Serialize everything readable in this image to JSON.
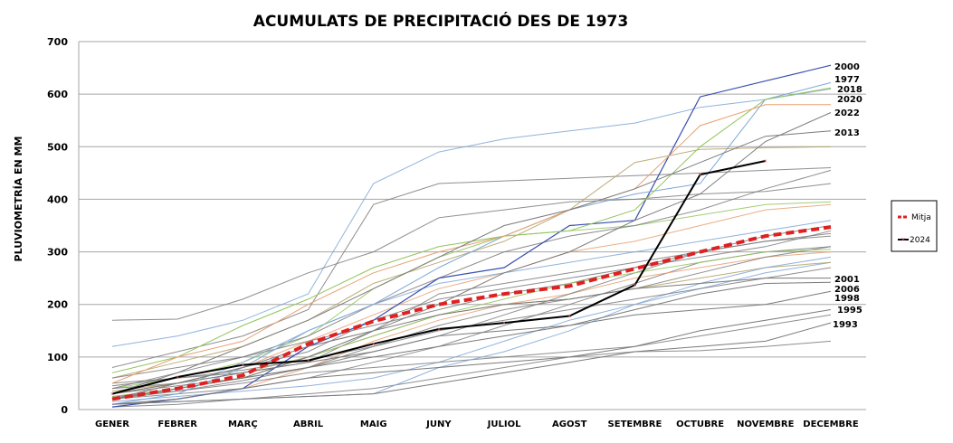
{
  "chart_data": {
    "type": "line",
    "title": "ACUMULATS DE PRECIPITACIÓ DES DE 1973",
    "ylabel": "PLUVIOMETRÍA EN MM",
    "xlabel": "",
    "ylim": [
      0,
      700
    ],
    "yticks": [
      0,
      100,
      200,
      300,
      400,
      500,
      600,
      700
    ],
    "categories": [
      "GENER",
      "FEBRER",
      "MARÇ",
      "ABRIL",
      "MAIG",
      "JUNY",
      "JULIOL",
      "AGOST",
      "SETEMBRE",
      "OCTUBRE",
      "NOVEMBRE",
      "DECEMBRE"
    ],
    "grid": true,
    "legend_position": "right",
    "highlight_series": [
      {
        "name": "Mitja",
        "color": "#e02020",
        "style": "dashed",
        "values": [
          20,
          40,
          65,
          125,
          168,
          200,
          220,
          235,
          268,
          300,
          330,
          347
        ]
      },
      {
        "name": "2024",
        "color": "#000000",
        "style": "solid-markers",
        "values": [
          30,
          62,
          85,
          93,
          125,
          153,
          165,
          178,
          237,
          447,
          473,
          null
        ]
      }
    ],
    "labeled_years": [
      {
        "name": "2000",
        "color": "#3a4fb0",
        "values": [
          5,
          20,
          40,
          120,
          170,
          250,
          270,
          350,
          360,
          595,
          625,
          655
        ]
      },
      {
        "name": "1977",
        "color": "#7ea6d6",
        "values": [
          10,
          30,
          80,
          150,
          200,
          270,
          330,
          380,
          410,
          430,
          590,
          622
        ]
      },
      {
        "name": "2018",
        "color": "#92c45c",
        "values": [
          70,
          100,
          160,
          210,
          270,
          310,
          330,
          340,
          380,
          500,
          590,
          612
        ]
      },
      {
        "name": "2020",
        "color": "#e8a070",
        "values": [
          50,
          100,
          130,
          200,
          260,
          300,
          330,
          380,
          420,
          540,
          580,
          580
        ]
      },
      {
        "name": "2022",
        "color": "#7a7a7a",
        "values": [
          20,
          40,
          60,
          100,
          150,
          200,
          260,
          300,
          360,
          410,
          510,
          565
        ]
      },
      {
        "name": "2013",
        "color": "#7a7a7a",
        "values": [
          30,
          70,
          120,
          170,
          230,
          290,
          350,
          380,
          420,
          470,
          520,
          530
        ]
      },
      {
        "name": "2001",
        "color": "#7a7a7a",
        "values": [
          20,
          50,
          80,
          120,
          150,
          180,
          200,
          210,
          230,
          240,
          250,
          250
        ]
      },
      {
        "name": "2006",
        "color": "#7a7a7a",
        "values": [
          20,
          40,
          60,
          80,
          100,
          120,
          140,
          160,
          190,
          220,
          240,
          242
        ]
      },
      {
        "name": "1998",
        "color": "#7a7a7a",
        "values": [
          30,
          50,
          70,
          90,
          110,
          140,
          150,
          160,
          180,
          190,
          200,
          225
        ]
      },
      {
        "name": "1995",
        "color": "#7a7a7a",
        "values": [
          10,
          20,
          40,
          60,
          70,
          80,
          90,
          100,
          120,
          150,
          170,
          190
        ]
      },
      {
        "name": "1993",
        "color": "#7a7a7a",
        "values": [
          10,
          15,
          20,
          25,
          30,
          50,
          70,
          90,
          110,
          120,
          130,
          165
        ]
      }
    ],
    "other_years": [
      {
        "color": "#7ea6d6",
        "values": [
          120,
          140,
          170,
          220,
          430,
          490,
          515,
          530,
          545,
          575,
          590,
          610
        ]
      },
      {
        "color": "#7a7a7a",
        "values": [
          80,
          110,
          140,
          190,
          390,
          430,
          435,
          440,
          445,
          450,
          455,
          460
        ]
      },
      {
        "color": "#7a7a7a",
        "values": [
          170,
          172,
          210,
          260,
          300,
          365,
          380,
          395,
          400,
          410,
          415,
          430
        ]
      },
      {
        "color": "#b0a060",
        "values": [
          60,
          90,
          120,
          170,
          240,
          280,
          320,
          380,
          470,
          495,
          498,
          500
        ]
      },
      {
        "color": "#92c45c",
        "values": [
          40,
          60,
          90,
          140,
          230,
          290,
          330,
          340,
          350,
          370,
          390,
          395
        ]
      },
      {
        "color": "#7a7a7a",
        "values": [
          40,
          70,
          100,
          140,
          200,
          250,
          300,
          330,
          350,
          380,
          420,
          455
        ]
      },
      {
        "color": "#e8a070",
        "values": [
          30,
          50,
          80,
          130,
          180,
          230,
          260,
          300,
          320,
          350,
          380,
          390
        ]
      },
      {
        "color": "#7ea6d6",
        "values": [
          20,
          40,
          90,
          150,
          200,
          240,
          260,
          280,
          300,
          320,
          340,
          360
        ]
      },
      {
        "color": "#7a7a7a",
        "values": [
          50,
          60,
          70,
          90,
          150,
          220,
          240,
          260,
          280,
          300,
          320,
          330
        ]
      },
      {
        "color": "#7a7a7a",
        "values": [
          40,
          50,
          80,
          110,
          170,
          210,
          230,
          250,
          270,
          290,
          310,
          340
        ]
      },
      {
        "color": "#7a7a7a",
        "values": [
          20,
          30,
          40,
          60,
          90,
          120,
          160,
          200,
          240,
          280,
          300,
          310
        ]
      },
      {
        "color": "#e8a070",
        "values": [
          10,
          20,
          40,
          80,
          130,
          170,
          200,
          220,
          250,
          270,
          290,
          300
        ]
      },
      {
        "color": "#7a7a7a",
        "values": [
          30,
          45,
          60,
          80,
          110,
          140,
          180,
          220,
          260,
          300,
          330,
          350
        ]
      },
      {
        "color": "#7ea6d6",
        "values": [
          15,
          25,
          35,
          45,
          60,
          90,
          130,
          170,
          200,
          230,
          260,
          280
        ]
      },
      {
        "color": "#7a7a7a",
        "values": [
          25,
          35,
          50,
          70,
          80,
          90,
          100,
          110,
          120,
          140,
          160,
          180
        ]
      },
      {
        "color": "#7a7a7a",
        "values": [
          5,
          10,
          20,
          30,
          40,
          60,
          80,
          100,
          110,
          112,
          120,
          130
        ]
      },
      {
        "color": "#b0a060",
        "values": [
          35,
          50,
          70,
          100,
          140,
          180,
          200,
          210,
          230,
          250,
          270,
          280
        ]
      },
      {
        "color": "#7a7a7a",
        "values": [
          60,
          80,
          100,
          130,
          160,
          190,
          220,
          240,
          270,
          300,
          320,
          335
        ]
      },
      {
        "color": "#7ea6d6",
        "values": [
          10,
          15,
          20,
          25,
          30,
          80,
          110,
          150,
          200,
          240,
          270,
          290
        ]
      },
      {
        "color": "#7a7a7a",
        "values": [
          20,
          35,
          55,
          80,
          120,
          160,
          190,
          210,
          230,
          260,
          290,
          310
        ]
      },
      {
        "color": "#7a7a7a",
        "values": [
          45,
          60,
          75,
          95,
          120,
          150,
          170,
          190,
          210,
          230,
          250,
          270
        ]
      },
      {
        "color": "#92c45c",
        "values": [
          25,
          40,
          60,
          100,
          140,
          180,
          210,
          240,
          260,
          280,
          300,
          305
        ]
      }
    ]
  }
}
